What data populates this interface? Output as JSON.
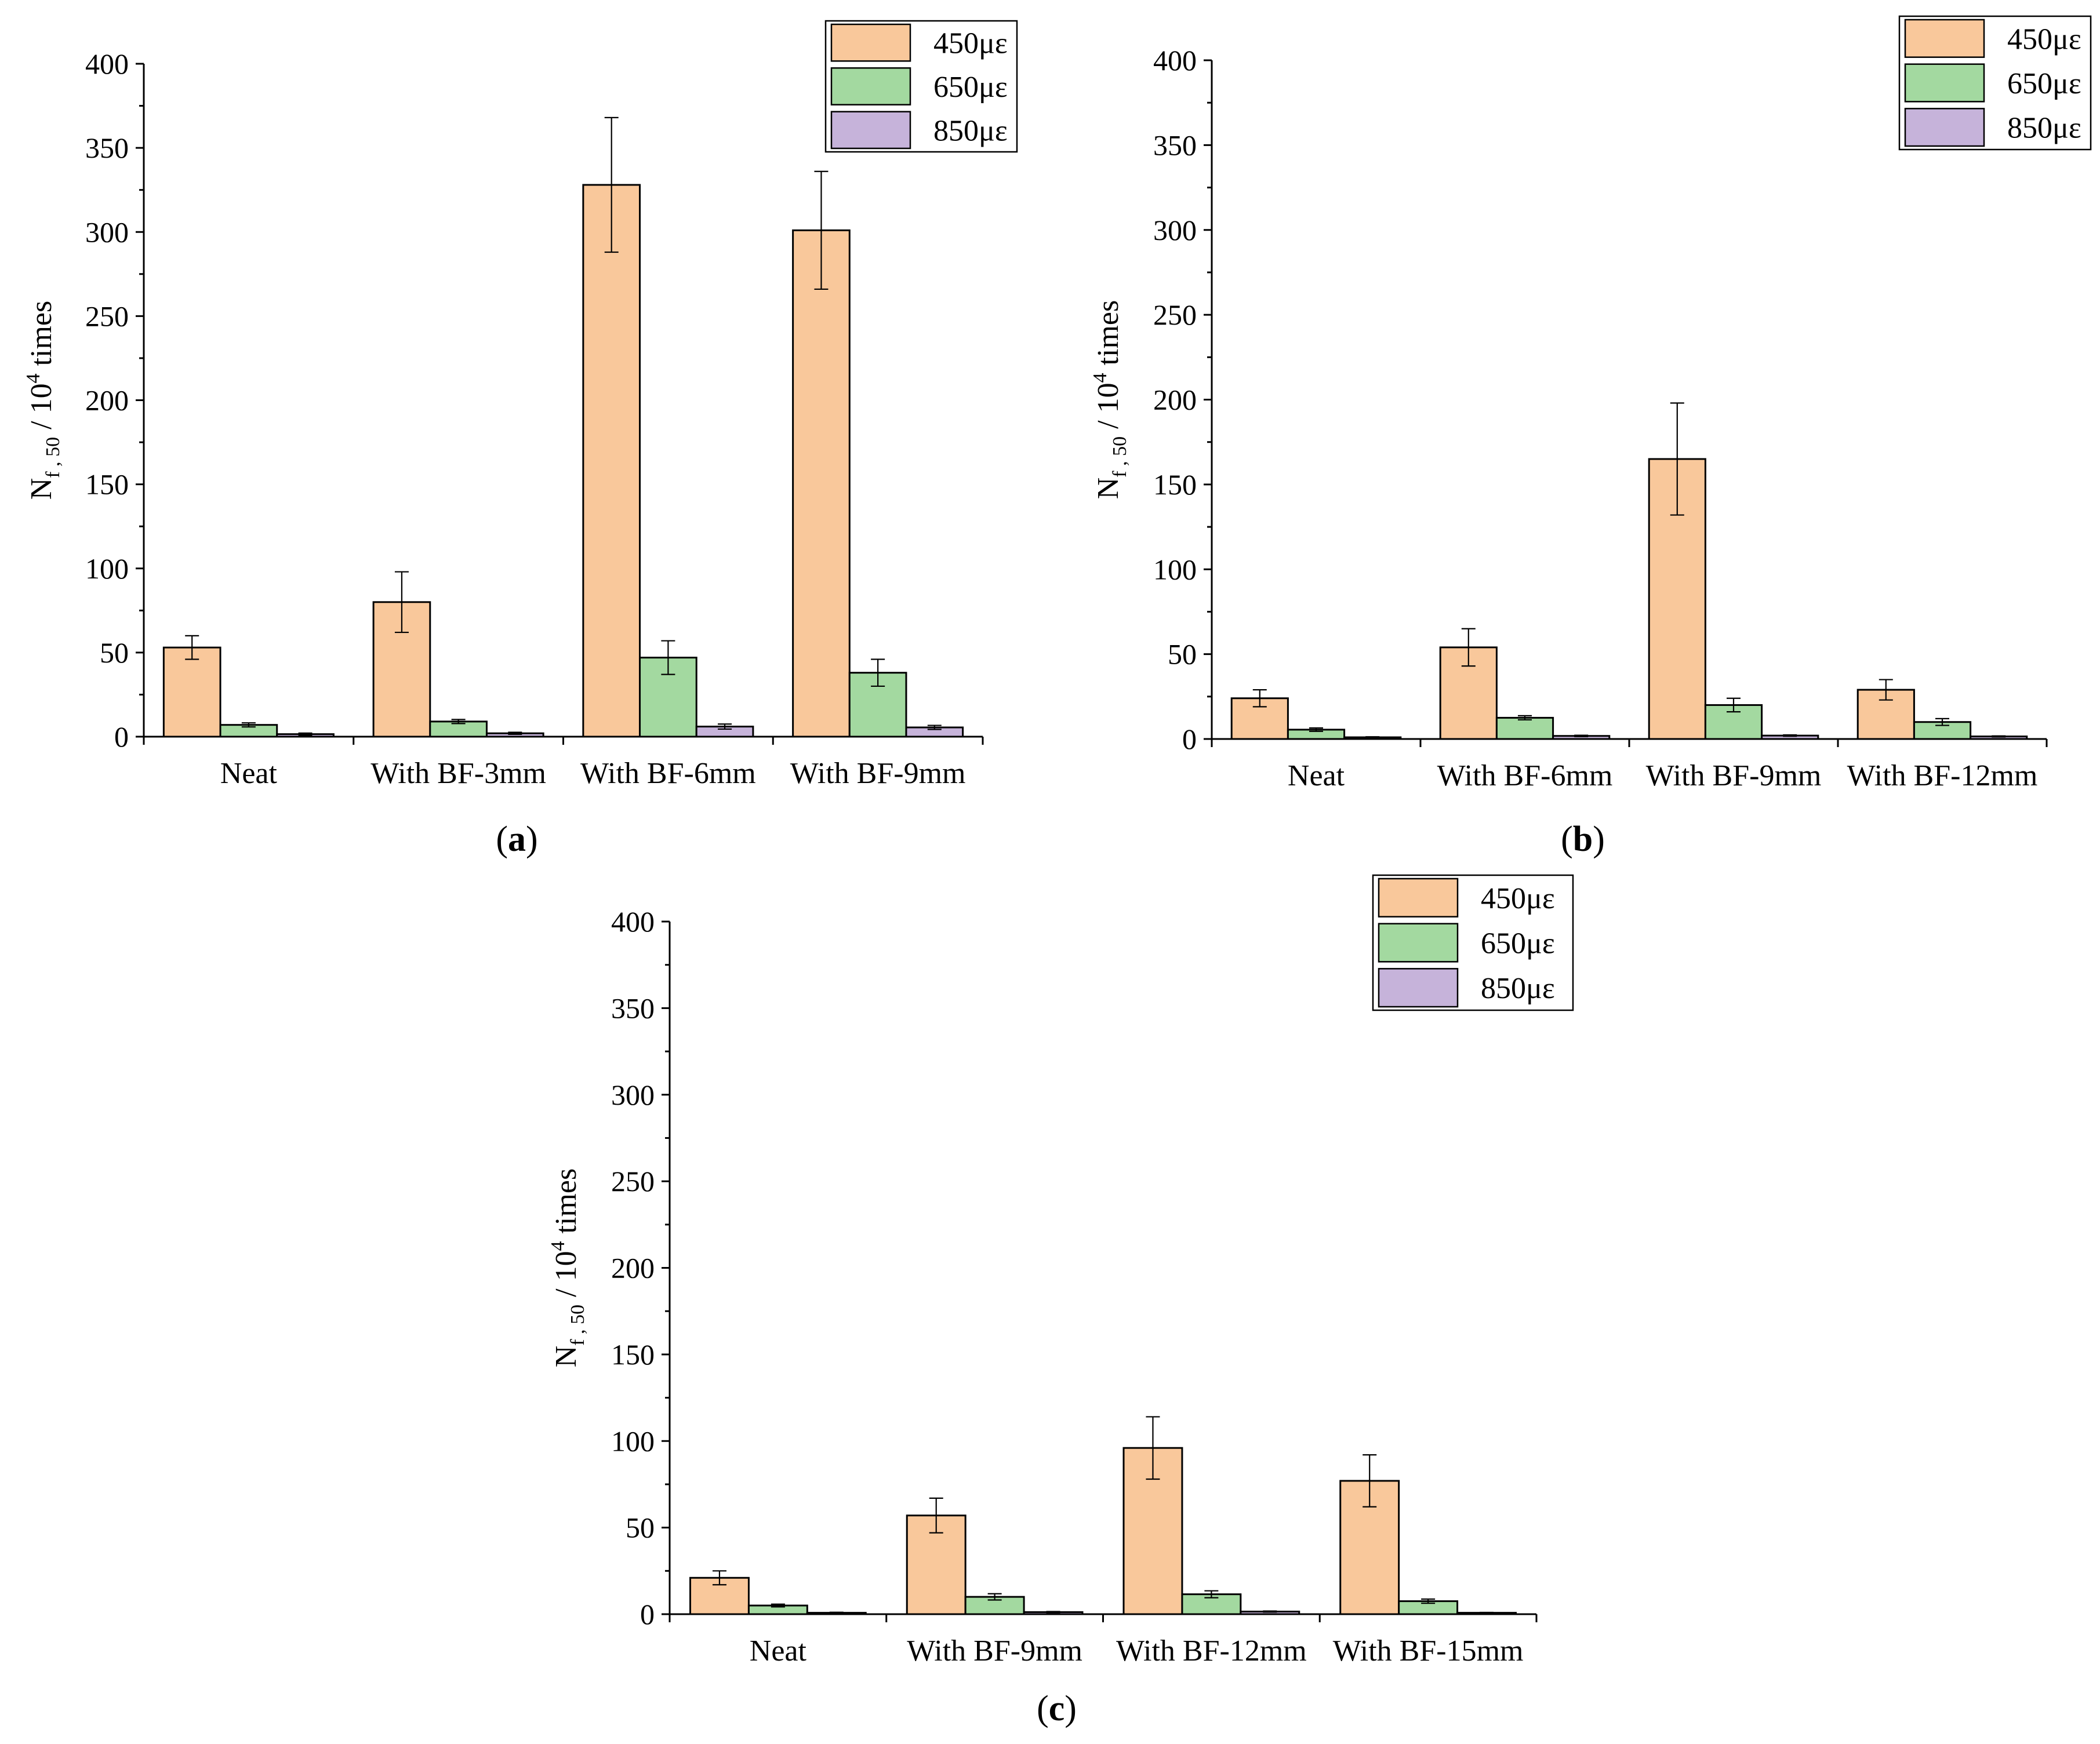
{
  "colors": {
    "450": "#F9C89B",
    "650": "#A3D9A0",
    "850": "#C6B3DA"
  },
  "chart_data": [
    {
      "type": "bar",
      "id": "a",
      "panel_label": "a",
      "title": "",
      "xlabel": "",
      "ylabel_main": "N",
      "ylabel_sub": "f , 50",
      "ylabel_tail": " / 10",
      "ylabel_exp": "4",
      "ylabel_end": " times",
      "ylim": [
        0,
        400
      ],
      "yticks": [
        0,
        50,
        100,
        150,
        200,
        250,
        300,
        350,
        400
      ],
      "categories": [
        "Neat",
        "With BF-3mm",
        "With BF-6mm",
        "With BF-9mm"
      ],
      "series": [
        {
          "name": "450με",
          "color_key": "450",
          "values": [
            53,
            80,
            328,
            301
          ],
          "errors": [
            7,
            18,
            40,
            35
          ]
        },
        {
          "name": "650με",
          "color_key": "650",
          "values": [
            7,
            9,
            47,
            38
          ],
          "errors": [
            1.2,
            1.2,
            10,
            8
          ]
        },
        {
          "name": "850με",
          "color_key": "850",
          "values": [
            1.5,
            2,
            6,
            5.5
          ],
          "errors": [
            0.6,
            0.6,
            1.5,
            1.2
          ]
        }
      ],
      "legend_position": "top-right"
    },
    {
      "type": "bar",
      "id": "b",
      "panel_label": "b",
      "title": "",
      "xlabel": "",
      "ylabel_main": "N",
      "ylabel_sub": "f , 50",
      "ylabel_tail": " / 10",
      "ylabel_exp": "4",
      "ylabel_end": " times",
      "ylim": [
        0,
        400
      ],
      "yticks": [
        0,
        50,
        100,
        150,
        200,
        250,
        300,
        350,
        400
      ],
      "categories": [
        "Neat",
        "With BF-6mm",
        "With BF-9mm",
        "With BF-12mm"
      ],
      "series": [
        {
          "name": "450με",
          "color_key": "450",
          "values": [
            24,
            54,
            165,
            29
          ],
          "errors": [
            5,
            11,
            33,
            6
          ]
        },
        {
          "name": "650με",
          "color_key": "650",
          "values": [
            5.5,
            12.5,
            20,
            10
          ],
          "errors": [
            1,
            1.2,
            4,
            2
          ]
        },
        {
          "name": "850με",
          "color_key": "850",
          "values": [
            1,
            1.8,
            2,
            1.5
          ],
          "errors": [
            0.3,
            0.4,
            0.4,
            0.3
          ]
        }
      ],
      "legend_position": "top-right"
    },
    {
      "type": "bar",
      "id": "c",
      "panel_label": "c",
      "title": "",
      "xlabel": "",
      "ylabel_main": "N",
      "ylabel_sub": "f , 50",
      "ylabel_tail": " / 10",
      "ylabel_exp": "4",
      "ylabel_end": " times",
      "ylim": [
        0,
        400
      ],
      "yticks": [
        0,
        50,
        100,
        150,
        200,
        250,
        300,
        350,
        400
      ],
      "categories": [
        "Neat",
        "With BF-9mm",
        "With BF-12mm",
        "With BF-15mm"
      ],
      "series": [
        {
          "name": "450με",
          "color_key": "450",
          "values": [
            21,
            57,
            96,
            77
          ],
          "errors": [
            4,
            10,
            18,
            15
          ]
        },
        {
          "name": "650με",
          "color_key": "650",
          "values": [
            5,
            10,
            11.5,
            7.5
          ],
          "errors": [
            0.8,
            1.8,
            2,
            1.2
          ]
        },
        {
          "name": "850με",
          "color_key": "850",
          "values": [
            0.8,
            1.2,
            1.5,
            0.8
          ],
          "errors": [
            0.3,
            0.3,
            0.3,
            0.2
          ]
        }
      ],
      "legend_position": "top-right"
    }
  ]
}
